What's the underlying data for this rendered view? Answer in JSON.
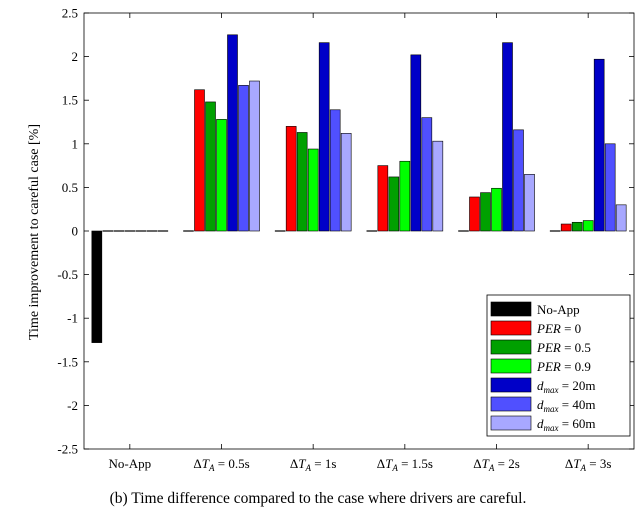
{
  "chart_data": {
    "type": "bar",
    "title": "",
    "ylabel": "Time improvement to careful case [%]",
    "xlabel": "",
    "ylim": [
      -2.5,
      2.5
    ],
    "yticks": [
      -2.5,
      -2,
      -1.5,
      -1,
      -0.5,
      0,
      0.5,
      1,
      1.5,
      2,
      2.5
    ],
    "ytick_labels": [
      "-2.5",
      "-2",
      "-1.5",
      "-1",
      "-0.5",
      "0",
      "0.5",
      "1",
      "1.5",
      "2",
      "2.5"
    ],
    "grid": false,
    "legend_position": "bottom-right",
    "categories": [
      "No-App",
      "ΔT_A = 0.5s",
      "ΔT_A = 1s",
      "ΔT_A = 1.5s",
      "ΔT_A = 2s",
      "ΔT_A = 3s"
    ],
    "series": [
      {
        "name": "No-App",
        "color": "#000000",
        "values": [
          -1.28,
          0,
          0,
          0,
          0,
          0
        ]
      },
      {
        "name": "PER = 0",
        "color": "#ff0000",
        "values": [
          0,
          1.62,
          1.2,
          0.75,
          0.39,
          0.08
        ]
      },
      {
        "name": "PER = 0.5",
        "color": "#00a000",
        "values": [
          0,
          1.48,
          1.13,
          0.62,
          0.44,
          0.1
        ]
      },
      {
        "name": "PER = 0.9",
        "color": "#00ff00",
        "values": [
          0,
          1.28,
          0.94,
          0.8,
          0.49,
          0.12
        ]
      },
      {
        "name": "d_max = 20m",
        "color": "#0000c8",
        "values": [
          0,
          2.25,
          2.16,
          2.02,
          2.16,
          1.97
        ]
      },
      {
        "name": "d_max = 40m",
        "color": "#5050ff",
        "values": [
          0,
          1.67,
          1.39,
          1.3,
          1.16,
          1.0
        ]
      },
      {
        "name": "d_max = 60m",
        "color": "#a8a8ff",
        "values": [
          0,
          1.72,
          1.12,
          1.03,
          0.65,
          0.3
        ]
      }
    ]
  },
  "caption": "(b) Time difference compared to the case where drivers are careful."
}
